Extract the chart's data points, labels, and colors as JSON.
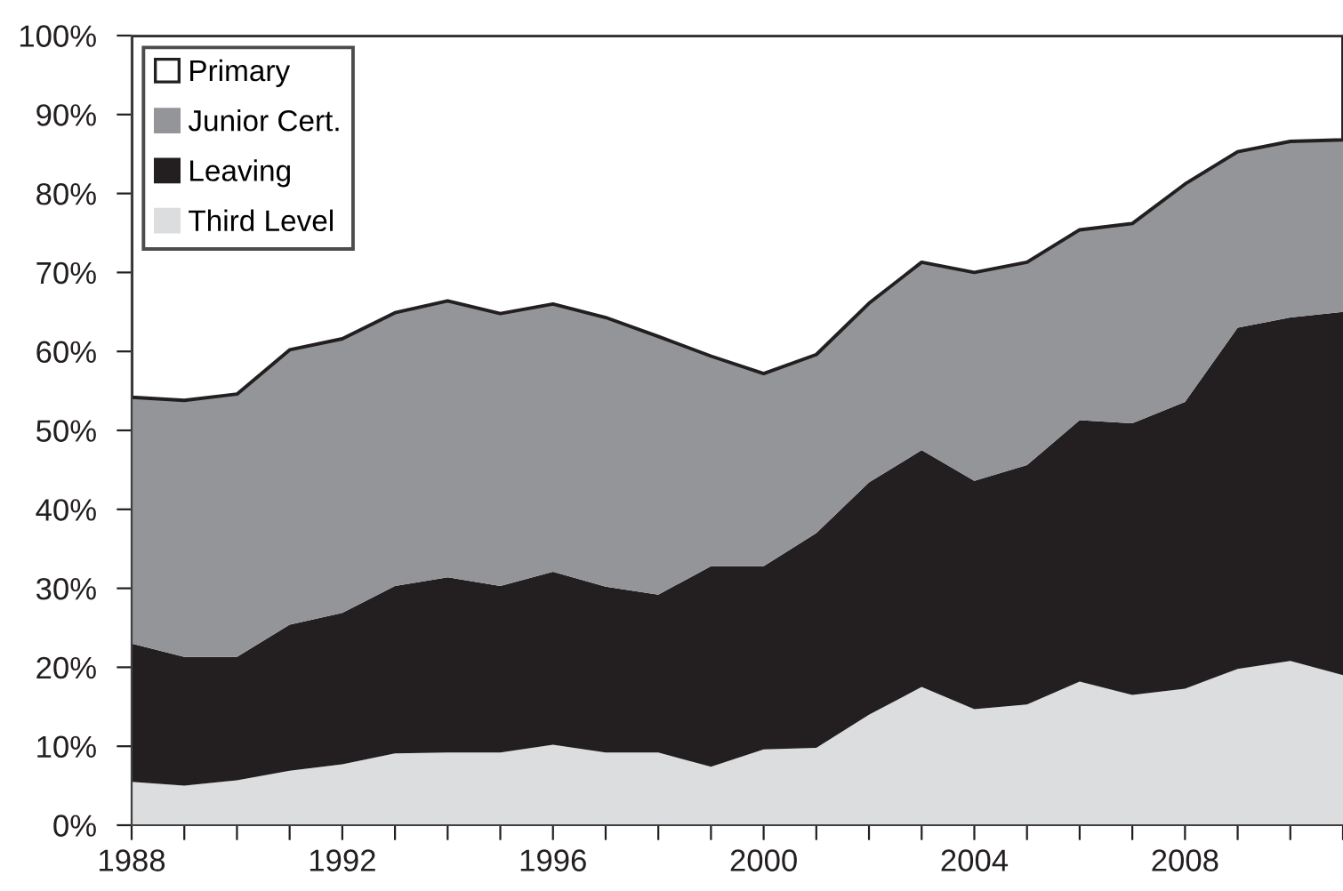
{
  "chart_data": {
    "type": "area",
    "stacked": true,
    "x": [
      1988,
      1989,
      1990,
      1991,
      1992,
      1993,
      1994,
      1995,
      1996,
      1997,
      1998,
      1999,
      2000,
      2001,
      2002,
      2003,
      2004,
      2005,
      2006,
      2007,
      2008,
      2009,
      2010,
      2011
    ],
    "series": [
      {
        "name": "Third Level",
        "color": "#dcdddf",
        "values": [
          5.5,
          5.0,
          5.7,
          6.9,
          7.7,
          9.1,
          9.2,
          9.2,
          10.2,
          9.2,
          9.2,
          7.4,
          9.6,
          9.8,
          14.0,
          17.5,
          14.7,
          15.3,
          18.2,
          16.5,
          17.3,
          19.8,
          20.8,
          19.0
        ]
      },
      {
        "name": "Leaving",
        "color": "#231f20",
        "values": [
          17.5,
          16.3,
          15.6,
          18.5,
          19.2,
          21.2,
          22.2,
          21.1,
          21.9,
          21.0,
          20.0,
          25.4,
          23.2,
          27.2,
          29.4,
          30.0,
          28.9,
          30.3,
          33.1,
          34.4,
          36.3,
          43.2,
          43.5,
          46.0
        ]
      },
      {
        "name": "Junior Cert.",
        "color": "#939598",
        "values": [
          31.2,
          32.5,
          33.3,
          34.8,
          34.7,
          34.6,
          35.0,
          34.5,
          33.9,
          34.1,
          32.7,
          26.6,
          24.4,
          22.6,
          22.7,
          23.8,
          26.4,
          25.7,
          24.1,
          25.3,
          27.6,
          22.3,
          22.3,
          21.8
        ]
      },
      {
        "name": "Primary",
        "color": "#ffffff",
        "values": [
          45.8,
          46.2,
          45.4,
          39.8,
          38.4,
          35.1,
          33.6,
          35.2,
          34.0,
          35.7,
          38.1,
          40.6,
          42.8,
          40.4,
          33.9,
          28.7,
          30.0,
          28.7,
          24.6,
          23.8,
          18.8,
          14.7,
          13.4,
          13.2
        ]
      }
    ],
    "xlim": [
      1988,
      2011
    ],
    "xticks": [
      1988,
      {
        "value": 1989,
        "label": null
      },
      {
        "value": 1990,
        "label": null
      },
      {
        "value": 1991,
        "label": null
      },
      1992,
      {
        "value": 1993,
        "label": null
      },
      {
        "value": 1994,
        "label": null
      },
      {
        "value": 1995,
        "label": null
      },
      1996,
      {
        "value": 1997,
        "label": null
      },
      {
        "value": 1998,
        "label": null
      },
      {
        "value": 1999,
        "label": null
      },
      2000,
      {
        "value": 2001,
        "label": null
      },
      {
        "value": 2002,
        "label": null
      },
      {
        "value": 2003,
        "label": null
      },
      2004,
      {
        "value": 2005,
        "label": null
      },
      {
        "value": 2006,
        "label": null
      },
      {
        "value": 2007,
        "label": null
      },
      2008,
      {
        "value": 2009,
        "label": null
      },
      {
        "value": 2010,
        "label": null
      },
      {
        "value": 2011,
        "label": null
      }
    ],
    "ylim": [
      0,
      100
    ],
    "yticks": [
      {
        "value": 0,
        "label": "0%"
      },
      {
        "value": 10,
        "label": "10%"
      },
      {
        "value": 20,
        "label": "20%"
      },
      {
        "value": 30,
        "label": "30%"
      },
      {
        "value": 40,
        "label": "40%"
      },
      {
        "value": 50,
        "label": "50%"
      },
      {
        "value": 60,
        "label": "60%"
      },
      {
        "value": 70,
        "label": "70%"
      },
      {
        "value": 80,
        "label": "80%"
      },
      {
        "value": 90,
        "label": "90%"
      },
      {
        "value": 100,
        "label": "100%"
      }
    ],
    "legend": "top left",
    "grid": false
  }
}
